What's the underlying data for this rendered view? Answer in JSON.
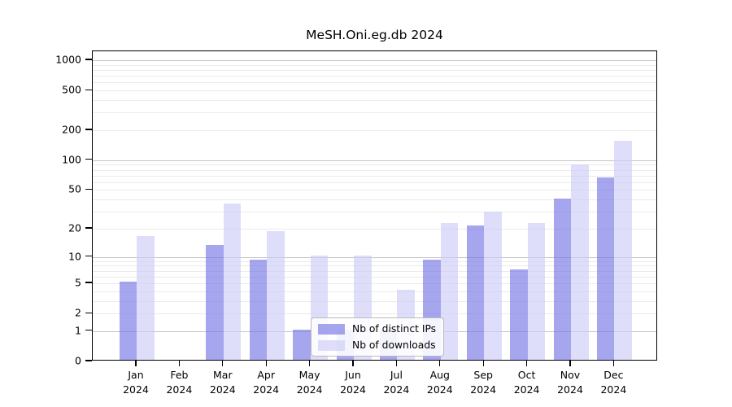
{
  "title": "MeSH.Oni.eg.db 2024",
  "chart_data": {
    "type": "bar",
    "title": "MeSH.Oni.eg.db 2024",
    "categories": [
      "Jan 2024",
      "Feb 2024",
      "Mar 2024",
      "Apr 2024",
      "May 2024",
      "Jun 2024",
      "Jul 2024",
      "Aug 2024",
      "Sep 2024",
      "Oct 2024",
      "Nov 2024",
      "Dec 2024"
    ],
    "series": [
      {
        "name": "Nb of distinct IPs",
        "color": "rgba(118,118,229,0.65)",
        "values": [
          5,
          0,
          13,
          9,
          1,
          1,
          1,
          9,
          21,
          7,
          39,
          65
        ]
      },
      {
        "name": "Nb of downloads",
        "color": "rgba(204,204,247,0.65)",
        "values": [
          16,
          0,
          35,
          18,
          10,
          10,
          4,
          22,
          29,
          22,
          88,
          150
        ]
      }
    ],
    "xlabel": "",
    "ylabel": "",
    "yscale": "log1p",
    "ylim": [
      0,
      1230
    ],
    "yticks": [
      1000,
      500,
      200,
      100,
      50,
      20,
      10,
      5,
      2,
      1,
      0
    ],
    "grid": "horizontal",
    "grid_major_at": [
      1,
      10,
      100,
      1000
    ],
    "grid_minor_at": [
      2,
      3,
      4,
      5,
      6,
      7,
      8,
      9,
      20,
      30,
      40,
      50,
      60,
      70,
      80,
      90,
      200,
      300,
      400,
      500,
      600,
      700,
      800,
      900
    ],
    "legend_position": "inside-lower-center"
  },
  "legend": {
    "items": [
      {
        "label": "Nb of distinct IPs"
      },
      {
        "label": "Nb of downloads"
      }
    ]
  },
  "colors": {
    "bar_distinct_ips": "rgba(118,118,229,0.65)",
    "bar_downloads": "rgba(204,204,247,0.65)",
    "grid_major": "#c3c3c3",
    "grid_minor": "#ebebeb",
    "axis": "#000000",
    "legend_border": "#bbbbbb",
    "background": "#ffffff",
    "text": "#000000"
  }
}
